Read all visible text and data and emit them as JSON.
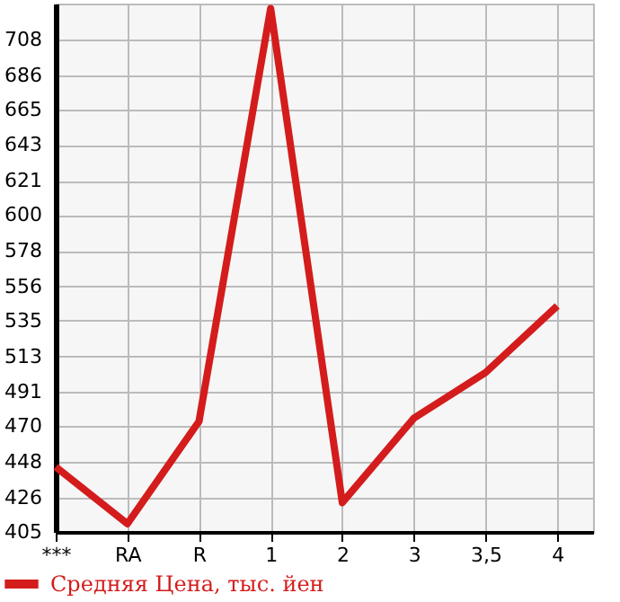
{
  "chart_data": {
    "type": "line",
    "categories": [
      "***",
      "RA",
      "R",
      "1",
      "2",
      "3",
      "3,5",
      "4"
    ],
    "series": [
      {
        "name": "Средняя Цена, тыс. йен",
        "color": "#d41c1c",
        "values": [
          445,
          410,
          473,
          727,
          423,
          475,
          503,
          544
        ]
      }
    ],
    "ylim": [
      405,
      730
    ],
    "yticks": [
      405,
      426,
      448,
      470,
      491,
      513,
      535,
      556,
      578,
      600,
      621,
      643,
      665,
      686,
      708
    ],
    "grid": true,
    "legend": "bottom",
    "marker": "none",
    "line_style": "solid"
  }
}
